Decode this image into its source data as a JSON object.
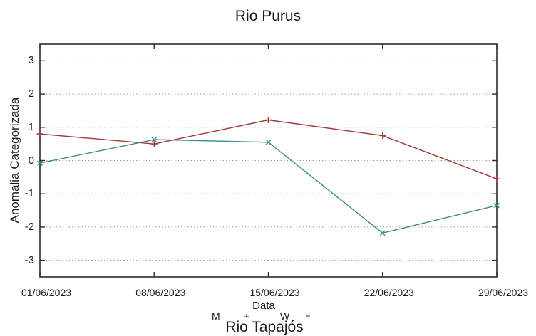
{
  "chart_data": {
    "type": "line",
    "title": "Rio Purus",
    "xlabel": "Data",
    "ylabel": "Anomalia Categorizada",
    "ylim": [
      -3.5,
      3.5
    ],
    "yticks": [
      3,
      2,
      1,
      0,
      -1,
      -2,
      -3
    ],
    "categories": [
      "01/06/2023",
      "08/06/2023",
      "15/06/2023",
      "22/06/2023",
      "29/06/2023"
    ],
    "grid": "horizontal-dotted",
    "legend_position": "below-clipped",
    "series": [
      {
        "name": "M",
        "marker": "plus",
        "color": "#a23636",
        "values": [
          0.8,
          0.5,
          1.22,
          0.75,
          -0.55
        ]
      },
      {
        "name": "W",
        "marker": "cross",
        "color": "#388c8c",
        "values": [
          -0.08,
          0.63,
          0.55,
          -2.18,
          -1.35
        ]
      }
    ],
    "colors": {
      "border": "#2b2b2b",
      "grid": "#9a9a9a",
      "text": "#1a1a1a"
    }
  },
  "clipped_bottom": {
    "legend_items": [
      {
        "label": "M",
        "marker": "+",
        "color": "#a23636"
      },
      {
        "label": "W",
        "marker": "×",
        "color": "#388c8c"
      }
    ],
    "next_chart_title": "Rio Tapajós"
  }
}
